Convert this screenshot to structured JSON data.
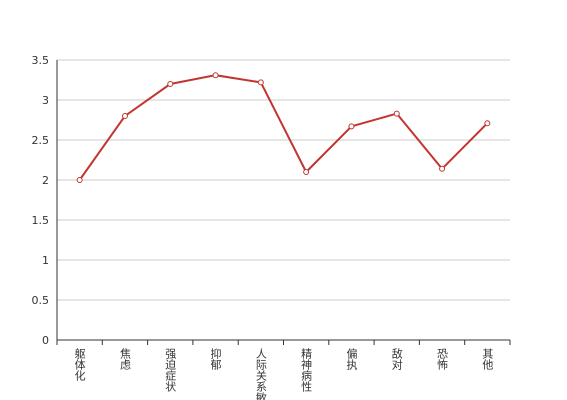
{
  "chart_data": {
    "type": "line",
    "categories": [
      "躯体化",
      "焦虑",
      "强迫症状",
      "抑郁",
      "人际关系敏感",
      "精神病性",
      "偏执",
      "敌对",
      "恐怖",
      "其他"
    ],
    "values": [
      2.0,
      2.8,
      3.2,
      3.31,
      3.22,
      2.1,
      2.67,
      2.83,
      2.14,
      2.71
    ],
    "color": "#c23531",
    "ylim": [
      0,
      3.5
    ],
    "yticks": [
      0,
      0.5,
      1,
      1.5,
      2,
      2.5,
      3,
      3.5
    ],
    "grid": true
  }
}
